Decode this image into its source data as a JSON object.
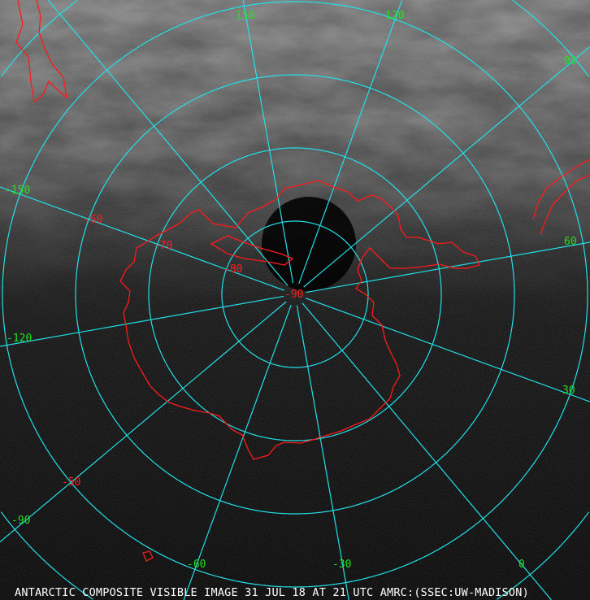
{
  "image": {
    "caption": "ANTARCTIC COMPOSITE VISIBLE IMAGE 31 JUL 18 AT 21 UTC AMRC:(SSEC:UW-MADISON)",
    "projection": "polar stereographic, south pole centered",
    "colors": {
      "graticule": "#22e0e8",
      "coastline": "#ff1a1a",
      "longitude_labels": "#22e022",
      "latitude_labels": "#ff2020",
      "caption": "#ffffff"
    }
  },
  "longitude_labels": [
    "150",
    "120",
    "90",
    "60",
    "30",
    "0",
    "-30",
    "-60",
    "-90",
    "-120",
    "-150"
  ],
  "latitude_labels": [
    "-90",
    "-80",
    "-70",
    "-60",
    "-50"
  ]
}
